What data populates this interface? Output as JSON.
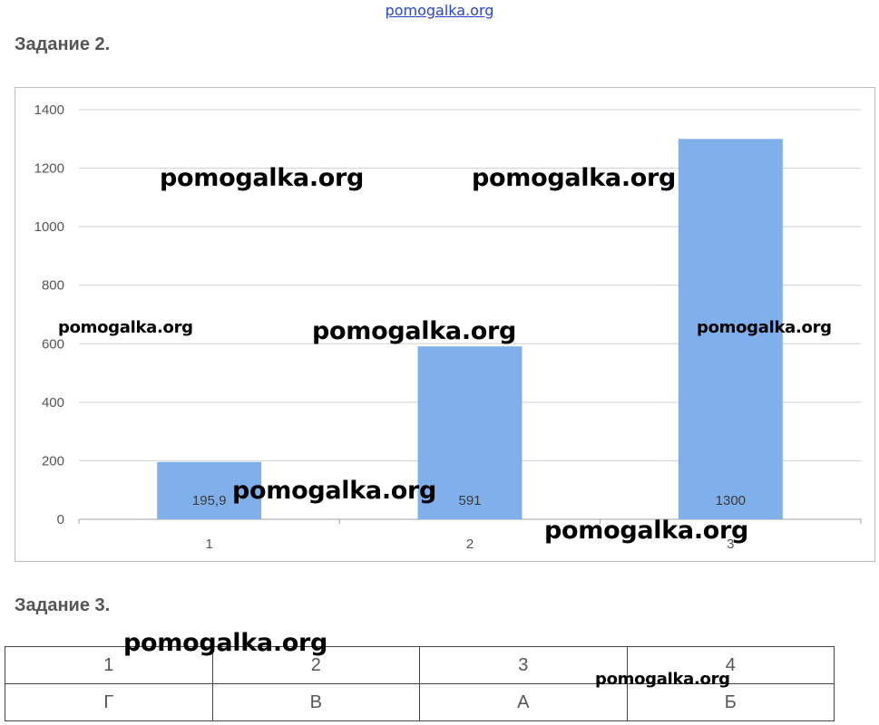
{
  "header": {
    "site_link": "pomogalka.org"
  },
  "task2": {
    "heading": "Задание 2."
  },
  "task3": {
    "heading": "Задание 3."
  },
  "chart_data": {
    "type": "bar",
    "categories": [
      "1",
      "2",
      "3"
    ],
    "values": [
      195.9,
      591,
      1300
    ],
    "data_labels": [
      "195,9",
      "591",
      "1300"
    ],
    "ylim": [
      0,
      1400
    ],
    "y_ticks": [
      0,
      200,
      400,
      600,
      800,
      1000,
      1200,
      1400
    ],
    "grid": true,
    "bar_color": "#7fb0ec",
    "title": "",
    "xlabel": "",
    "ylabel": ""
  },
  "answer_table": {
    "header": [
      "1",
      "2",
      "3",
      "4"
    ],
    "row": [
      "Г",
      "В",
      "А",
      "Б"
    ]
  },
  "watermarks": [
    "pomogalka.org",
    "pomogalka.org",
    "pomogalka.org",
    "pomogalka.org",
    "pomogalka.org",
    "pomogalka.org",
    "pomogalka.org",
    "pomogalka.org",
    "pomogalka.org"
  ]
}
